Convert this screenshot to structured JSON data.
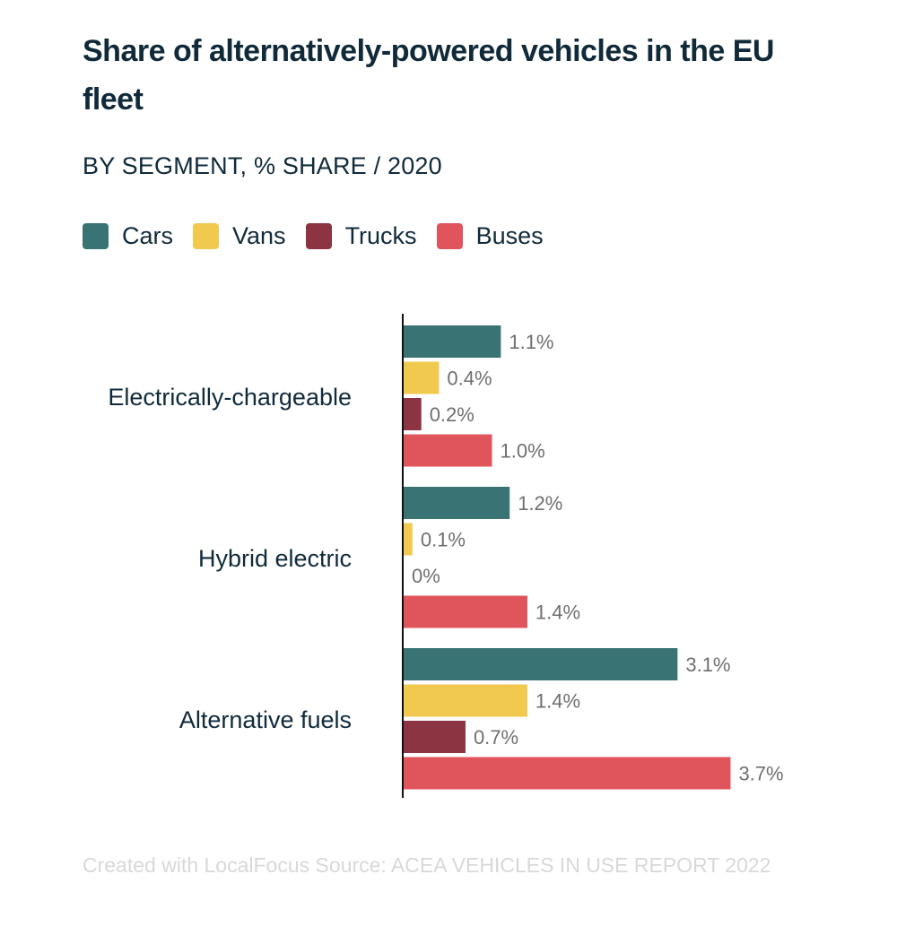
{
  "title": "Share of alternatively-powered vehicles in the EU fleet",
  "subtitle": "BY SEGMENT, % SHARE / 2020",
  "footer": {
    "credit": "Created with LocalFocus",
    "source": "Source:  ACEA VEHICLES IN USE REPORT 2022"
  },
  "legend": [
    {
      "label": "Cars",
      "color": "#3a7373"
    },
    {
      "label": "Vans",
      "color": "#f2c94f"
    },
    {
      "label": "Trucks",
      "color": "#8c3441"
    },
    {
      "label": "Buses",
      "color": "#e0545c"
    }
  ],
  "chart_data": {
    "type": "bar",
    "orientation": "horizontal",
    "title": "Share of alternatively-powered vehicles in the EU fleet",
    "subtitle": "BY SEGMENT, % SHARE / 2020",
    "categories": [
      "Electrically-chargeable",
      "Hybrid electric",
      "Alternative fuels"
    ],
    "series": [
      {
        "name": "Cars",
        "color": "#3a7373",
        "values": [
          1.1,
          1.2,
          3.1
        ],
        "labels": [
          "1.1%",
          "1.2%",
          "3.1%"
        ]
      },
      {
        "name": "Vans",
        "color": "#f2c94f",
        "values": [
          0.4,
          0.1,
          1.4
        ],
        "labels": [
          "0.4%",
          "0.1%",
          "1.4%"
        ]
      },
      {
        "name": "Trucks",
        "color": "#8c3441",
        "values": [
          0.2,
          0,
          0.7
        ],
        "labels": [
          "0.2%",
          "0%",
          "0.7%"
        ]
      },
      {
        "name": "Buses",
        "color": "#e0545c",
        "values": [
          1.0,
          1.4,
          3.7
        ],
        "labels": [
          "1.0%",
          "1.4%",
          "3.7%"
        ]
      }
    ],
    "xlim": [
      0,
      3.7
    ],
    "grid": false,
    "legend_position": "top-left",
    "xlabel": "",
    "ylabel": ""
  }
}
